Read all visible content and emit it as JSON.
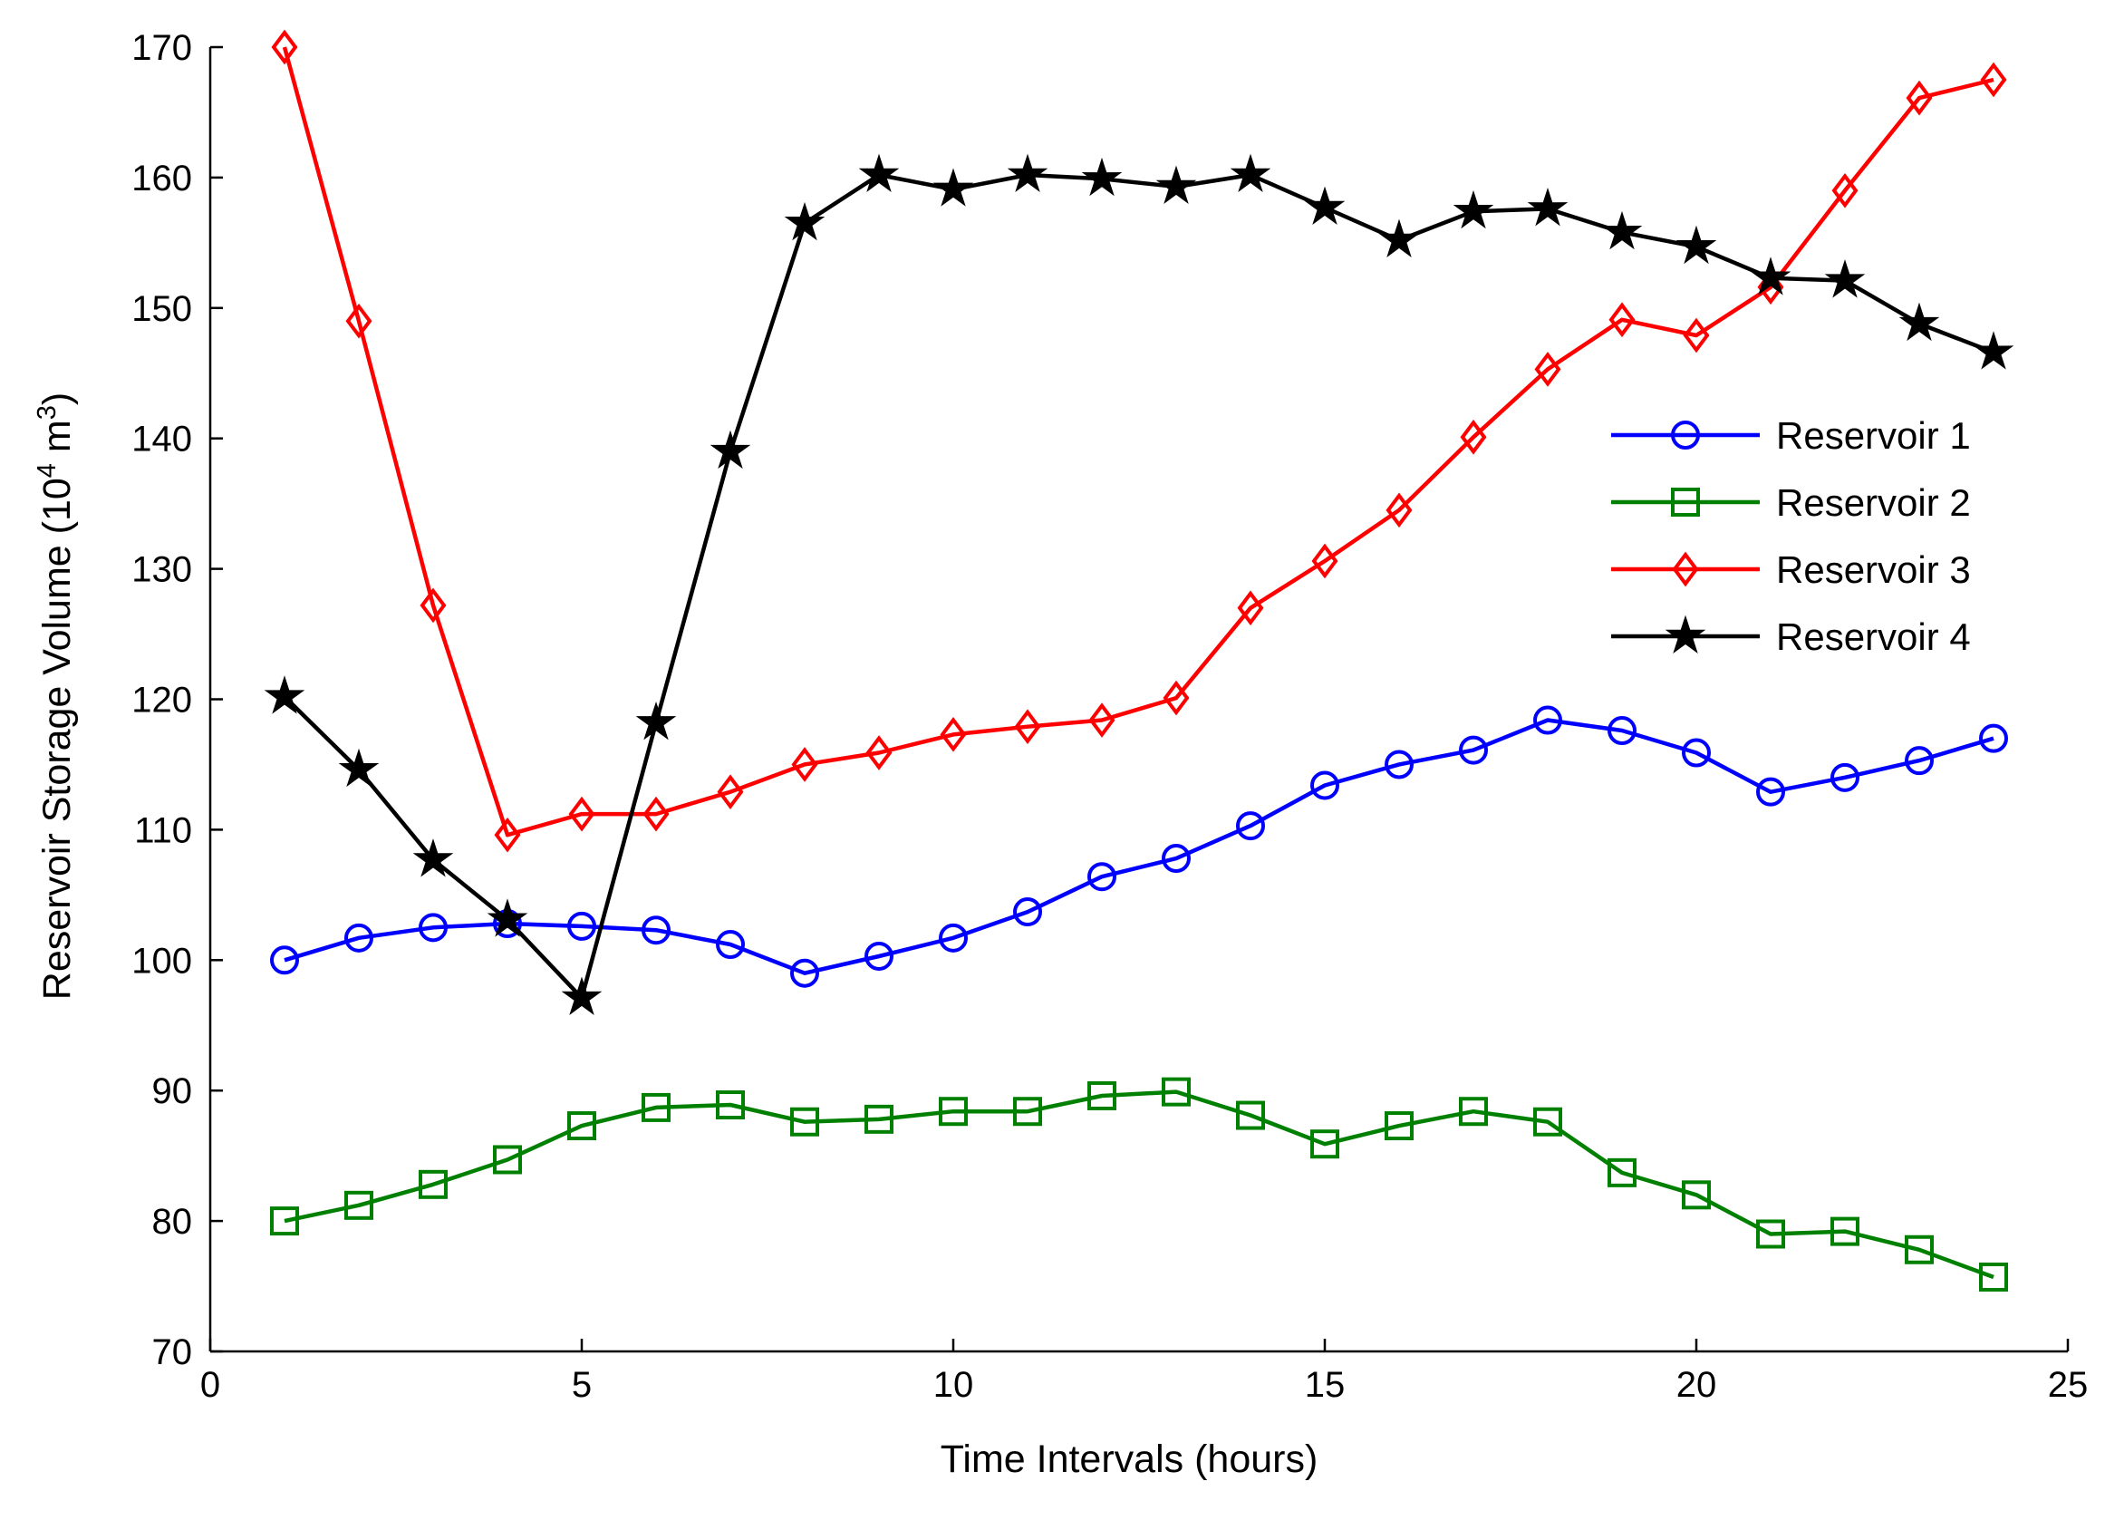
{
  "chart_data": {
    "type": "line",
    "title": "",
    "xlabel": "Time Intervals (hours)",
    "ylabel": {
      "main": "Reservoir Storage Volume (10",
      "exp1": "4",
      "mid": " m",
      "exp2": "3",
      "end": ")"
    },
    "xlim": [
      0,
      25
    ],
    "ylim": [
      70,
      170
    ],
    "xticks": [
      0,
      5,
      10,
      15,
      20,
      25
    ],
    "yticks": [
      70,
      80,
      90,
      100,
      110,
      120,
      130,
      140,
      150,
      160,
      170
    ],
    "grid": false,
    "legend_position": "right",
    "x": [
      1,
      2,
      3,
      4,
      5,
      6,
      7,
      8,
      9,
      10,
      11,
      12,
      13,
      14,
      15,
      16,
      17,
      18,
      19,
      20,
      21,
      22,
      23,
      24
    ],
    "series": [
      {
        "name": "Reservoir 1",
        "color": "#0000ff",
        "marker": "circle",
        "values": [
          100.0,
          101.7,
          102.5,
          102.8,
          102.6,
          102.3,
          101.2,
          99.0,
          100.3,
          101.7,
          103.7,
          106.4,
          107.8,
          110.3,
          113.4,
          115.0,
          116.1,
          118.4,
          117.6,
          115.9,
          112.9,
          114.0,
          115.3,
          117.0
        ]
      },
      {
        "name": "Reservoir 2",
        "color": "#008000",
        "marker": "square",
        "values": [
          80.0,
          81.2,
          82.8,
          84.7,
          87.3,
          88.7,
          88.9,
          87.6,
          87.8,
          88.4,
          88.4,
          89.6,
          89.9,
          88.1,
          85.9,
          87.3,
          88.4,
          87.6,
          83.7,
          82.0,
          79.0,
          79.2,
          77.8,
          75.7
        ]
      },
      {
        "name": "Reservoir 3",
        "color": "#ff0000",
        "marker": "diamond",
        "values": [
          170.0,
          149.0,
          127.2,
          109.6,
          111.2,
          111.2,
          112.9,
          115.0,
          115.9,
          117.3,
          117.9,
          118.4,
          120.1,
          127.0,
          130.6,
          134.5,
          140.1,
          145.3,
          149.1,
          147.9,
          151.6,
          159.0,
          166.1,
          167.5
        ]
      },
      {
        "name": "Reservoir 4",
        "color": "#000000",
        "marker": "star",
        "values": [
          120.2,
          114.6,
          107.7,
          103.1,
          97.1,
          118.2,
          139.0,
          156.5,
          160.2,
          159.1,
          160.2,
          159.9,
          159.3,
          160.2,
          157.7,
          155.2,
          157.4,
          157.6,
          155.8,
          154.7,
          152.3,
          152.1,
          148.8,
          146.6
        ]
      }
    ]
  }
}
